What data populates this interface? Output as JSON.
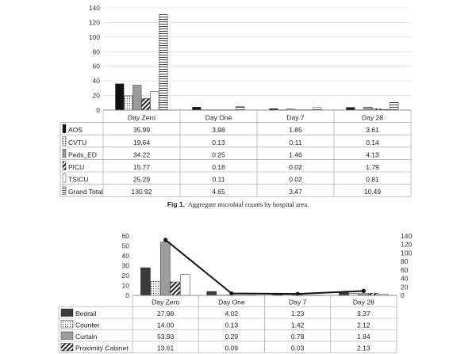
{
  "caption": {
    "label": "Fig 1.",
    "text": "Aggregate microbial counts by hospital area."
  },
  "chart_data": [
    {
      "type": "bar",
      "categories": [
        "Day Zero",
        "Day One",
        "Day 7",
        "Day 28"
      ],
      "ylim": [
        0,
        140
      ],
      "yticks": [
        0,
        20,
        40,
        60,
        80,
        100,
        120,
        140
      ],
      "grid": true,
      "legend": "data table below chart",
      "series": [
        {
          "name": "AOS",
          "values": [
            35.99,
            3.98,
            1.85,
            3.61
          ],
          "pattern": "solid-black"
        },
        {
          "name": "CVTU",
          "values": [
            19.64,
            0.13,
            0.11,
            0.14
          ],
          "pattern": "dots"
        },
        {
          "name": "Peds_ED",
          "values": [
            34.22,
            0.25,
            1.46,
            4.13
          ],
          "pattern": "solid-gray"
        },
        {
          "name": "PICU",
          "values": [
            15.77,
            0.18,
            0.02,
            1.79
          ],
          "pattern": "diagonal"
        },
        {
          "name": "TSICU",
          "values": [
            25.29,
            0.11,
            0.02,
            0.81
          ],
          "pattern": "white"
        },
        {
          "name": "Grand Total",
          "values": [
            130.92,
            4.65,
            3.47,
            10.49
          ],
          "pattern": "horizontal-lines"
        }
      ],
      "table": [
        {
          "label": "AOS",
          "cells": [
            "35.99",
            "3.98",
            "1.85",
            "3.61"
          ]
        },
        {
          "label": "CVTU",
          "cells": [
            "19.64",
            "0.13",
            "0.11",
            "0.14"
          ]
        },
        {
          "label": "Peds_ED",
          "cells": [
            "34.22",
            "0.25",
            "1.46",
            "4.13"
          ]
        },
        {
          "label": "PICU",
          "cells": [
            "15.77",
            "0.18",
            "0.02",
            "1.79"
          ]
        },
        {
          "label": "TSICU",
          "cells": [
            "25.29",
            "0.11",
            "0.02",
            "0.81"
          ]
        },
        {
          "label": "Grand Total",
          "cells": [
            "130.92",
            "4.65",
            "3.47",
            "10.49"
          ]
        }
      ]
    },
    {
      "type": "bar",
      "categories": [
        "Day Zero",
        "Day One",
        "Day 7",
        "Day 28"
      ],
      "ylim": [
        0,
        60
      ],
      "yticks": [
        0,
        10,
        20,
        30,
        40,
        50,
        60
      ],
      "y2lim": [
        0,
        140
      ],
      "y2ticks": [
        0,
        20,
        40,
        60,
        80,
        100,
        120,
        140
      ],
      "grid": false,
      "legend": "data table below chart",
      "series": [
        {
          "name": "Bedrail",
          "values": [
            27.98,
            4.02,
            1.23,
            3.37
          ],
          "pattern": "solid-dark"
        },
        {
          "name": "Counter",
          "values": [
            14.0,
            0.13,
            1.42,
            2.12
          ],
          "pattern": "dots"
        },
        {
          "name": "Curtain",
          "values": [
            53.93,
            0.29,
            0.78,
            1.84
          ],
          "pattern": "solid-gray"
        },
        {
          "name": "Proximity Cabinet",
          "values": [
            13.61,
            0.09,
            0.03,
            2.13
          ],
          "pattern": "diagonal"
        },
        {
          "values": [
            21.0,
            0.2,
            0.05,
            1.0
          ],
          "pattern": "white"
        }
      ],
      "line_series": {
        "axis": "right",
        "values": [
          130.92,
          4.65,
          3.47,
          10.49
        ],
        "marker": "circle"
      },
      "table": [
        {
          "label": "Bedrail",
          "cells": [
            "27.98",
            "4.02",
            "1.23",
            "3.37"
          ]
        },
        {
          "label": "Counter",
          "cells": [
            "14.00",
            "0.13",
            "1.42",
            "2.12"
          ]
        },
        {
          "label": "Curtain",
          "cells": [
            "53.93",
            "0.29",
            "0.78",
            "1.84"
          ]
        },
        {
          "label": "Proximity Cabinet",
          "cells": [
            "13.61",
            "0.09",
            "0.03",
            "2.13"
          ]
        }
      ]
    }
  ]
}
